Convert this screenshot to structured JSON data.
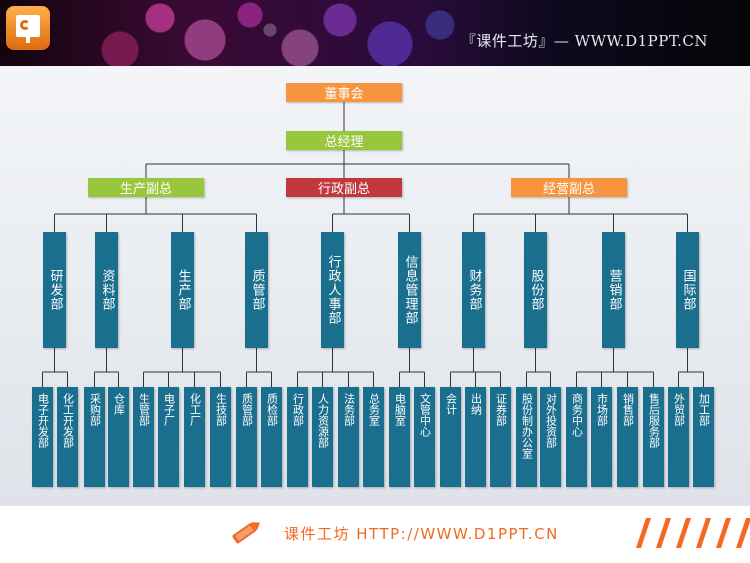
{
  "header": {
    "title": "『课件工坊』— WWW.D1PPT.CN"
  },
  "footer": {
    "text": "课件工坊 HTTP://WWW.D1PPT.CN"
  },
  "org": {
    "board": "董事会",
    "gm": "总经理",
    "vps": [
      {
        "label": "生产副总",
        "color": "#98c63c",
        "depts": [
          {
            "label": "研发部",
            "units": [
              "电子开发部",
              "化工开发部"
            ]
          },
          {
            "label": "资料部",
            "units": [
              "采购部",
              "仓库"
            ]
          },
          {
            "label": "生产部",
            "units": [
              "生管部",
              "电子厂",
              "化工厂",
              "生技部"
            ]
          },
          {
            "label": "质管部",
            "units": [
              "质管部",
              "质检部"
            ]
          }
        ]
      },
      {
        "label": "行政副总",
        "color": "#c1383d",
        "depts": [
          {
            "label": "行政人事部",
            "units": [
              "行政部",
              "人力资源部",
              "法务部",
              "总务室"
            ]
          },
          {
            "label": "信息管理部",
            "units": [
              "电脑室",
              "文管中心"
            ]
          }
        ]
      },
      {
        "label": "经营副总",
        "color": "#f7953e",
        "depts": [
          {
            "label": "财务部",
            "units": [
              "会计",
              "出纳",
              "证券部"
            ]
          },
          {
            "label": "股份部",
            "units": [
              "股份制办公室",
              "对外投资部"
            ]
          },
          {
            "label": "营销部",
            "units": [
              "商务中心",
              "市场部",
              "销售部",
              "售后服务部"
            ]
          },
          {
            "label": "国际部",
            "units": [
              "外贸部",
              "加工部"
            ]
          }
        ]
      }
    ]
  }
}
